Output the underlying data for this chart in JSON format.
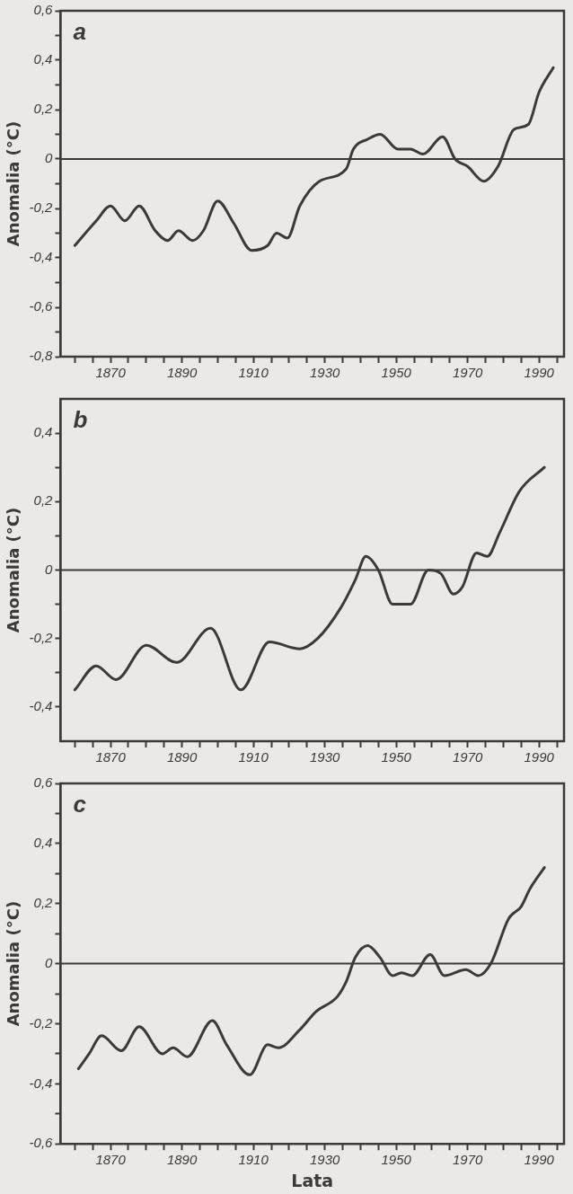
{
  "chart_data": [
    {
      "type": "line",
      "title": "a",
      "ylabel": "Anomalia (°C)",
      "color": "#3a3a3a",
      "line_style": "solid",
      "marker": "none",
      "grid": false,
      "legend": false,
      "x": [
        1860,
        1866,
        1870,
        1874,
        1878,
        1882.5,
        1886,
        1889,
        1893,
        1896,
        1900,
        1904.5,
        1909.5,
        1914,
        1916.5,
        1919.5,
        1923,
        1928.5,
        1936,
        1938,
        1942,
        1945.5,
        1950.5,
        1954,
        1957.5,
        1963,
        1966.5,
        1970,
        1974.5,
        1978.5,
        1983,
        1987,
        1990,
        1994
      ],
      "values": [
        -0.35,
        -0.25,
        -0.19,
        -0.25,
        -0.19,
        -0.29,
        -0.33,
        -0.29,
        -0.33,
        -0.29,
        -0.17,
        -0.26,
        -0.37,
        -0.35,
        -0.3,
        -0.32,
        -0.19,
        -0.09,
        -0.04,
        0.04,
        0.08,
        0.1,
        0.04,
        0.04,
        0.02,
        0.09,
        0,
        -0.03,
        -0.09,
        -0.03,
        0.12,
        0.14,
        0.27,
        0.37
      ],
      "xlim": [
        1856,
        1997
      ],
      "xticks": [
        {
          "value": 1860,
          "label": null
        },
        {
          "value": 1865,
          "label": null
        },
        {
          "value": 1870,
          "label": "1870"
        },
        {
          "value": 1875,
          "label": null
        },
        {
          "value": 1880,
          "label": null
        },
        {
          "value": 1885,
          "label": null
        },
        {
          "value": 1890,
          "label": "1890"
        },
        {
          "value": 1895,
          "label": null
        },
        {
          "value": 1900,
          "label": null
        },
        {
          "value": 1905,
          "label": null
        },
        {
          "value": 1910,
          "label": "1910"
        },
        {
          "value": 1915,
          "label": null
        },
        {
          "value": 1920,
          "label": null
        },
        {
          "value": 1925,
          "label": null
        },
        {
          "value": 1930,
          "label": "1930"
        },
        {
          "value": 1935,
          "label": null
        },
        {
          "value": 1940,
          "label": null
        },
        {
          "value": 1945,
          "label": null
        },
        {
          "value": 1950,
          "label": "1950"
        },
        {
          "value": 1955,
          "label": null
        },
        {
          "value": 1960,
          "label": null
        },
        {
          "value": 1965,
          "label": null
        },
        {
          "value": 1970,
          "label": "1970"
        },
        {
          "value": 1975,
          "label": null
        },
        {
          "value": 1980,
          "label": null
        },
        {
          "value": 1985,
          "label": null
        },
        {
          "value": 1990,
          "label": "1990"
        },
        {
          "value": 1995,
          "label": null
        }
      ],
      "ylim": [
        -0.8,
        0.6
      ],
      "yticks": [
        {
          "value": -0.8,
          "label": "-0,8"
        },
        {
          "value": -0.7,
          "label": null
        },
        {
          "value": -0.6,
          "label": "-0,6"
        },
        {
          "value": -0.5,
          "label": null
        },
        {
          "value": -0.4,
          "label": "-0,4"
        },
        {
          "value": -0.3,
          "label": null
        },
        {
          "value": -0.2,
          "label": "-0,2"
        },
        {
          "value": -0.1,
          "label": null
        },
        {
          "value": 0,
          "label": "0"
        },
        {
          "value": 0.1,
          "label": null
        },
        {
          "value": 0.2,
          "label": "0,2"
        },
        {
          "value": 0.3,
          "label": null
        },
        {
          "value": 0.4,
          "label": "0,4"
        },
        {
          "value": 0.5,
          "label": null
        },
        {
          "value": 0.6,
          "label": "0,6"
        }
      ],
      "ref_lines": [
        {
          "axis": "y",
          "value": 0,
          "color": "#3a3a3a"
        }
      ]
    },
    {
      "type": "line",
      "title": "b",
      "ylabel": "Anomalia (°C)",
      "color": "#3a3a3a",
      "line_style": "solid",
      "marker": "none",
      "grid": false,
      "legend": false,
      "x": [
        1860,
        1866,
        1871.5,
        1880,
        1888.5,
        1898,
        1906.5,
        1914.5,
        1923,
        1928,
        1934.5,
        1938.5,
        1941.5,
        1945,
        1949,
        1954,
        1959,
        1962.5,
        1966,
        1968.5,
        1972.5,
        1975.5,
        1979,
        1984.5,
        1991.5
      ],
      "values": [
        -0.35,
        -0.28,
        -0.32,
        -0.22,
        -0.27,
        -0.17,
        -0.35,
        -0.21,
        -0.23,
        -0.2,
        -0.11,
        -0.03,
        0.04,
        0,
        -0.1,
        -0.1,
        0,
        -0.01,
        -0.07,
        -0.05,
        0.05,
        0.04,
        0.11,
        0.23,
        0.3
      ],
      "xlim": [
        1856,
        1997
      ],
      "xticks": [
        {
          "value": 1860,
          "label": null
        },
        {
          "value": 1865,
          "label": null
        },
        {
          "value": 1870,
          "label": "1870"
        },
        {
          "value": 1875,
          "label": null
        },
        {
          "value": 1880,
          "label": null
        },
        {
          "value": 1885,
          "label": null
        },
        {
          "value": 1890,
          "label": "1890"
        },
        {
          "value": 1895,
          "label": null
        },
        {
          "value": 1900,
          "label": null
        },
        {
          "value": 1905,
          "label": null
        },
        {
          "value": 1910,
          "label": "1910"
        },
        {
          "value": 1915,
          "label": null
        },
        {
          "value": 1920,
          "label": null
        },
        {
          "value": 1925,
          "label": null
        },
        {
          "value": 1930,
          "label": "1930"
        },
        {
          "value": 1935,
          "label": null
        },
        {
          "value": 1940,
          "label": null
        },
        {
          "value": 1945,
          "label": null
        },
        {
          "value": 1950,
          "label": "1950"
        },
        {
          "value": 1955,
          "label": null
        },
        {
          "value": 1960,
          "label": null
        },
        {
          "value": 1965,
          "label": null
        },
        {
          "value": 1970,
          "label": "1970"
        },
        {
          "value": 1975,
          "label": null
        },
        {
          "value": 1980,
          "label": null
        },
        {
          "value": 1985,
          "label": null
        },
        {
          "value": 1990,
          "label": "1990"
        },
        {
          "value": 1995,
          "label": null
        }
      ],
      "ylim": [
        -0.5,
        0.5
      ],
      "yticks": [
        {
          "value": -0.4,
          "label": "-0,4"
        },
        {
          "value": -0.3,
          "label": null
        },
        {
          "value": -0.2,
          "label": "-0,2"
        },
        {
          "value": -0.1,
          "label": null
        },
        {
          "value": 0,
          "label": "0"
        },
        {
          "value": 0.1,
          "label": null
        },
        {
          "value": 0.2,
          "label": "0,2"
        },
        {
          "value": 0.3,
          "label": null
        },
        {
          "value": 0.4,
          "label": "0,4"
        }
      ],
      "ref_lines": [
        {
          "axis": "y",
          "value": 0,
          "color": "#3a3a3a"
        }
      ]
    },
    {
      "type": "line",
      "title": "c",
      "xlabel": "Lata",
      "ylabel": "Anomalia (°C)",
      "color": "#3a3a3a",
      "line_style": "solid",
      "marker": "none",
      "grid": false,
      "legend": false,
      "x": [
        1861,
        1864,
        1867.5,
        1873,
        1878,
        1884.5,
        1887.5,
        1891.5,
        1898.5,
        1902.5,
        1909,
        1914,
        1917,
        1923,
        1927.5,
        1933.5,
        1936,
        1938.5,
        1942,
        1945.5,
        1949,
        1951.5,
        1954.5,
        1959.5,
        1963.5,
        1969.5,
        1973,
        1976.5,
        1981.5,
        1985,
        1987.5,
        1991.5
      ],
      "values": [
        -0.35,
        -0.3,
        -0.24,
        -0.29,
        -0.21,
        -0.3,
        -0.28,
        -0.31,
        -0.19,
        -0.27,
        -0.37,
        -0.27,
        -0.28,
        -0.22,
        -0.16,
        -0.11,
        -0.06,
        0.02,
        0.06,
        0.02,
        -0.04,
        -0.03,
        -0.04,
        0.03,
        -0.04,
        -0.02,
        -0.04,
        0,
        0.15,
        0.19,
        0.25,
        0.32
      ],
      "xlim": [
        1856,
        1997
      ],
      "xticks": [
        {
          "value": 1860,
          "label": null
        },
        {
          "value": 1865,
          "label": null
        },
        {
          "value": 1870,
          "label": "1870"
        },
        {
          "value": 1875,
          "label": null
        },
        {
          "value": 1880,
          "label": null
        },
        {
          "value": 1885,
          "label": null
        },
        {
          "value": 1890,
          "label": "1890"
        },
        {
          "value": 1895,
          "label": null
        },
        {
          "value": 1900,
          "label": null
        },
        {
          "value": 1905,
          "label": null
        },
        {
          "value": 1910,
          "label": "1910"
        },
        {
          "value": 1915,
          "label": null
        },
        {
          "value": 1920,
          "label": null
        },
        {
          "value": 1925,
          "label": null
        },
        {
          "value": 1930,
          "label": "1930"
        },
        {
          "value": 1935,
          "label": null
        },
        {
          "value": 1940,
          "label": null
        },
        {
          "value": 1945,
          "label": null
        },
        {
          "value": 1950,
          "label": "1950"
        },
        {
          "value": 1955,
          "label": null
        },
        {
          "value": 1960,
          "label": null
        },
        {
          "value": 1965,
          "label": null
        },
        {
          "value": 1970,
          "label": "1970"
        },
        {
          "value": 1975,
          "label": null
        },
        {
          "value": 1980,
          "label": null
        },
        {
          "value": 1985,
          "label": null
        },
        {
          "value": 1990,
          "label": "1990"
        },
        {
          "value": 1995,
          "label": null
        }
      ],
      "ylim": [
        -0.6,
        0.6
      ],
      "yticks": [
        {
          "value": -0.6,
          "label": "-0,6"
        },
        {
          "value": -0.5,
          "label": null
        },
        {
          "value": -0.4,
          "label": "-0,4"
        },
        {
          "value": -0.3,
          "label": null
        },
        {
          "value": -0.2,
          "label": "-0,2"
        },
        {
          "value": -0.1,
          "label": null
        },
        {
          "value": 0,
          "label": "0"
        },
        {
          "value": 0.1,
          "label": null
        },
        {
          "value": 0.2,
          "label": "0,2"
        },
        {
          "value": 0.3,
          "label": null
        },
        {
          "value": 0.4,
          "label": "0,4"
        },
        {
          "value": 0.5,
          "label": null
        },
        {
          "value": 0.6,
          "label": "0,6"
        }
      ],
      "ref_lines": [
        {
          "axis": "y",
          "value": 0,
          "color": "#3a3a3a"
        }
      ]
    }
  ]
}
